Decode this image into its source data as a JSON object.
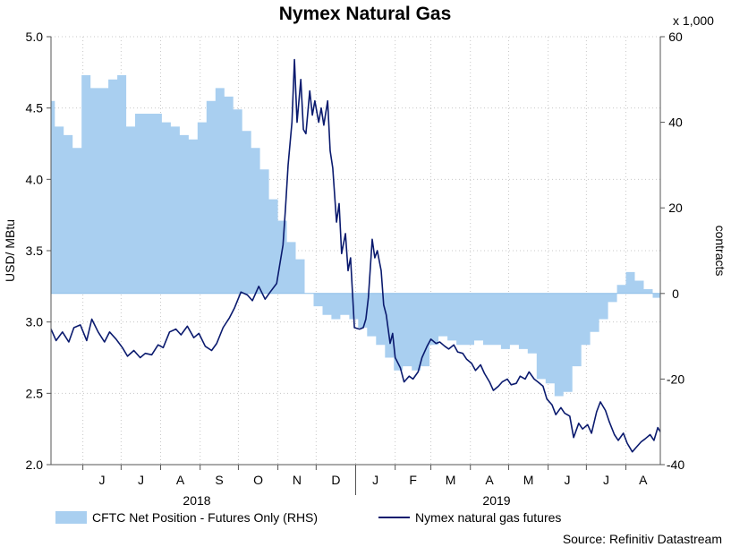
{
  "chart_data": {
    "type": "line",
    "title": "Nymex Natural Gas",
    "left_axis": {
      "label": "USD/ MBtu",
      "range": [
        2.0,
        5.0
      ],
      "ticks": [
        "2.0",
        "2.5",
        "3.0",
        "3.5",
        "4.0",
        "4.5",
        "5.0"
      ]
    },
    "right_axis": {
      "label": "contracts",
      "multiplier_label": "x 1,000",
      "range": [
        -40,
        60
      ],
      "ticks": [
        "-40",
        "-20",
        "0",
        "20",
        "40",
        "60"
      ]
    },
    "x_axis": {
      "range": [
        "2018-05-07",
        "2019-08-28"
      ],
      "month_labels": [
        "J",
        "J",
        "A",
        "S",
        "O",
        "N",
        "D",
        "J",
        "F",
        "M",
        "A",
        "M",
        "J",
        "J",
        "A"
      ],
      "year_labels": [
        "2018",
        "2019"
      ]
    },
    "grid": true,
    "legend_position": "bottom",
    "series": [
      {
        "name": "CFTC Net Position - Futures Only (RHS)",
        "kind": "area",
        "axis": "right",
        "color": "#a9cff0",
        "points": [
          [
            "2018-05-07",
            45
          ],
          [
            "2018-05-10",
            39
          ],
          [
            "2018-05-17",
            37
          ],
          [
            "2018-05-24",
            34
          ],
          [
            "2018-05-31",
            51
          ],
          [
            "2018-06-07",
            48
          ],
          [
            "2018-06-14",
            48
          ],
          [
            "2018-06-21",
            50
          ],
          [
            "2018-06-28",
            51
          ],
          [
            "2018-07-05",
            39
          ],
          [
            "2018-07-12",
            42
          ],
          [
            "2018-07-19",
            42
          ],
          [
            "2018-07-26",
            42
          ],
          [
            "2018-08-02",
            40
          ],
          [
            "2018-08-09",
            39
          ],
          [
            "2018-08-16",
            37
          ],
          [
            "2018-08-23",
            36
          ],
          [
            "2018-08-30",
            40
          ],
          [
            "2018-09-06",
            45
          ],
          [
            "2018-09-13",
            48
          ],
          [
            "2018-09-20",
            46
          ],
          [
            "2018-09-27",
            43
          ],
          [
            "2018-10-04",
            38
          ],
          [
            "2018-10-11",
            34
          ],
          [
            "2018-10-18",
            29
          ],
          [
            "2018-10-25",
            22
          ],
          [
            "2018-11-01",
            17
          ],
          [
            "2018-11-08",
            12
          ],
          [
            "2018-11-15",
            8
          ],
          [
            "2018-11-22",
            0
          ],
          [
            "2018-11-29",
            -3
          ],
          [
            "2018-12-06",
            -5
          ],
          [
            "2018-12-13",
            -6
          ],
          [
            "2018-12-20",
            -5
          ],
          [
            "2018-12-27",
            -6
          ],
          [
            "2019-01-03",
            -8
          ],
          [
            "2019-01-10",
            -10
          ],
          [
            "2019-01-17",
            -12
          ],
          [
            "2019-01-24",
            -15
          ],
          [
            "2019-01-31",
            -18
          ],
          [
            "2019-02-07",
            -17
          ],
          [
            "2019-02-14",
            -18
          ],
          [
            "2019-02-21",
            -17
          ],
          [
            "2019-02-28",
            -12
          ],
          [
            "2019-03-07",
            -10
          ],
          [
            "2019-03-14",
            -11
          ],
          [
            "2019-03-21",
            -12
          ],
          [
            "2019-03-28",
            -12
          ],
          [
            "2019-04-04",
            -11
          ],
          [
            "2019-04-11",
            -12
          ],
          [
            "2019-04-18",
            -12
          ],
          [
            "2019-04-25",
            -13
          ],
          [
            "2019-05-02",
            -12
          ],
          [
            "2019-05-09",
            -13
          ],
          [
            "2019-05-16",
            -14
          ],
          [
            "2019-05-23",
            -20
          ],
          [
            "2019-05-30",
            -21
          ],
          [
            "2019-06-06",
            -24
          ],
          [
            "2019-06-13",
            -23
          ],
          [
            "2019-06-20",
            -17
          ],
          [
            "2019-06-27",
            -12
          ],
          [
            "2019-07-04",
            -9
          ],
          [
            "2019-07-11",
            -6
          ],
          [
            "2019-07-18",
            -2
          ],
          [
            "2019-07-25",
            2
          ],
          [
            "2019-08-01",
            5
          ],
          [
            "2019-08-08",
            3
          ],
          [
            "2019-08-15",
            1
          ],
          [
            "2019-08-22",
            -1
          ],
          [
            "2019-08-28",
            -2
          ]
        ]
      },
      {
        "name": "Nymex natural gas futures",
        "kind": "line",
        "axis": "left",
        "color": "#0a1a6e",
        "points": [
          [
            "2018-05-07",
            2.95
          ],
          [
            "2018-05-11",
            2.87
          ],
          [
            "2018-05-16",
            2.93
          ],
          [
            "2018-05-21",
            2.86
          ],
          [
            "2018-05-25",
            2.96
          ],
          [
            "2018-05-30",
            2.98
          ],
          [
            "2018-06-04",
            2.87
          ],
          [
            "2018-06-08",
            3.02
          ],
          [
            "2018-06-13",
            2.93
          ],
          [
            "2018-06-18",
            2.86
          ],
          [
            "2018-06-22",
            2.93
          ],
          [
            "2018-06-27",
            2.88
          ],
          [
            "2018-07-02",
            2.82
          ],
          [
            "2018-07-06",
            2.76
          ],
          [
            "2018-07-11",
            2.8
          ],
          [
            "2018-07-16",
            2.75
          ],
          [
            "2018-07-20",
            2.78
          ],
          [
            "2018-07-25",
            2.77
          ],
          [
            "2018-07-30",
            2.84
          ],
          [
            "2018-08-03",
            2.82
          ],
          [
            "2018-08-08",
            2.93
          ],
          [
            "2018-08-13",
            2.95
          ],
          [
            "2018-08-17",
            2.91
          ],
          [
            "2018-08-22",
            2.97
          ],
          [
            "2018-08-27",
            2.89
          ],
          [
            "2018-08-31",
            2.92
          ],
          [
            "2018-09-05",
            2.83
          ],
          [
            "2018-09-10",
            2.8
          ],
          [
            "2018-09-14",
            2.85
          ],
          [
            "2018-09-19",
            2.96
          ],
          [
            "2018-09-24",
            3.03
          ],
          [
            "2018-09-28",
            3.1
          ],
          [
            "2018-10-03",
            3.21
          ],
          [
            "2018-10-08",
            3.19
          ],
          [
            "2018-10-12",
            3.15
          ],
          [
            "2018-10-17",
            3.25
          ],
          [
            "2018-10-22",
            3.16
          ],
          [
            "2018-10-26",
            3.21
          ],
          [
            "2018-10-31",
            3.27
          ],
          [
            "2018-11-05",
            3.54
          ],
          [
            "2018-11-07",
            3.8
          ],
          [
            "2018-11-09",
            4.1
          ],
          [
            "2018-11-12",
            4.4
          ],
          [
            "2018-11-14",
            4.84
          ],
          [
            "2018-11-16",
            4.4
          ],
          [
            "2018-11-19",
            4.7
          ],
          [
            "2018-11-21",
            4.35
          ],
          [
            "2018-11-23",
            4.32
          ],
          [
            "2018-11-26",
            4.62
          ],
          [
            "2018-11-28",
            4.45
          ],
          [
            "2018-11-30",
            4.55
          ],
          [
            "2018-12-03",
            4.4
          ],
          [
            "2018-12-05",
            4.5
          ],
          [
            "2018-12-07",
            4.38
          ],
          [
            "2018-12-10",
            4.55
          ],
          [
            "2018-12-12",
            4.2
          ],
          [
            "2018-12-14",
            4.08
          ],
          [
            "2018-12-17",
            3.7
          ],
          [
            "2018-12-19",
            3.83
          ],
          [
            "2018-12-21",
            3.48
          ],
          [
            "2018-12-24",
            3.62
          ],
          [
            "2018-12-26",
            3.36
          ],
          [
            "2018-12-28",
            3.45
          ],
          [
            "2018-12-31",
            2.96
          ],
          [
            "2019-01-04",
            2.95
          ],
          [
            "2019-01-07",
            2.96
          ],
          [
            "2019-01-09",
            3.02
          ],
          [
            "2019-01-11",
            3.17
          ],
          [
            "2019-01-14",
            3.58
          ],
          [
            "2019-01-16",
            3.45
          ],
          [
            "2019-01-18",
            3.5
          ],
          [
            "2019-01-21",
            3.36
          ],
          [
            "2019-01-23",
            3.12
          ],
          [
            "2019-01-25",
            3.05
          ],
          [
            "2019-01-28",
            2.85
          ],
          [
            "2019-01-30",
            2.92
          ],
          [
            "2019-02-01",
            2.75
          ],
          [
            "2019-02-05",
            2.68
          ],
          [
            "2019-02-08",
            2.58
          ],
          [
            "2019-02-12",
            2.62
          ],
          [
            "2019-02-15",
            2.6
          ],
          [
            "2019-02-19",
            2.65
          ],
          [
            "2019-02-22",
            2.75
          ],
          [
            "2019-02-26",
            2.83
          ],
          [
            "2019-03-01",
            2.88
          ],
          [
            "2019-03-05",
            2.85
          ],
          [
            "2019-03-08",
            2.86
          ],
          [
            "2019-03-12",
            2.83
          ],
          [
            "2019-03-15",
            2.81
          ],
          [
            "2019-03-19",
            2.84
          ],
          [
            "2019-03-22",
            2.79
          ],
          [
            "2019-03-26",
            2.78
          ],
          [
            "2019-03-29",
            2.74
          ],
          [
            "2019-04-02",
            2.71
          ],
          [
            "2019-04-05",
            2.66
          ],
          [
            "2019-04-09",
            2.7
          ],
          [
            "2019-04-12",
            2.64
          ],
          [
            "2019-04-16",
            2.58
          ],
          [
            "2019-04-19",
            2.52
          ],
          [
            "2019-04-23",
            2.55
          ],
          [
            "2019-04-26",
            2.58
          ],
          [
            "2019-04-30",
            2.6
          ],
          [
            "2019-05-03",
            2.56
          ],
          [
            "2019-05-07",
            2.57
          ],
          [
            "2019-05-10",
            2.62
          ],
          [
            "2019-05-14",
            2.6
          ],
          [
            "2019-05-17",
            2.65
          ],
          [
            "2019-05-21",
            2.6
          ],
          [
            "2019-05-24",
            2.58
          ],
          [
            "2019-05-28",
            2.55
          ],
          [
            "2019-05-31",
            2.46
          ],
          [
            "2019-06-04",
            2.42
          ],
          [
            "2019-06-07",
            2.35
          ],
          [
            "2019-06-11",
            2.4
          ],
          [
            "2019-06-14",
            2.36
          ],
          [
            "2019-06-18",
            2.34
          ],
          [
            "2019-06-21",
            2.19
          ],
          [
            "2019-06-25",
            2.29
          ],
          [
            "2019-06-28",
            2.25
          ],
          [
            "2019-07-02",
            2.28
          ],
          [
            "2019-07-05",
            2.22
          ],
          [
            "2019-07-09",
            2.37
          ],
          [
            "2019-07-12",
            2.44
          ],
          [
            "2019-07-16",
            2.38
          ],
          [
            "2019-07-19",
            2.3
          ],
          [
            "2019-07-23",
            2.21
          ],
          [
            "2019-07-26",
            2.17
          ],
          [
            "2019-07-30",
            2.22
          ],
          [
            "2019-08-02",
            2.15
          ],
          [
            "2019-08-06",
            2.09
          ],
          [
            "2019-08-09",
            2.12
          ],
          [
            "2019-08-13",
            2.16
          ],
          [
            "2019-08-16",
            2.18
          ],
          [
            "2019-08-20",
            2.21
          ],
          [
            "2019-08-23",
            2.17
          ],
          [
            "2019-08-26",
            2.26
          ],
          [
            "2019-08-28",
            2.23
          ]
        ]
      }
    ],
    "source": "Source: Refinitiv Datastream"
  }
}
